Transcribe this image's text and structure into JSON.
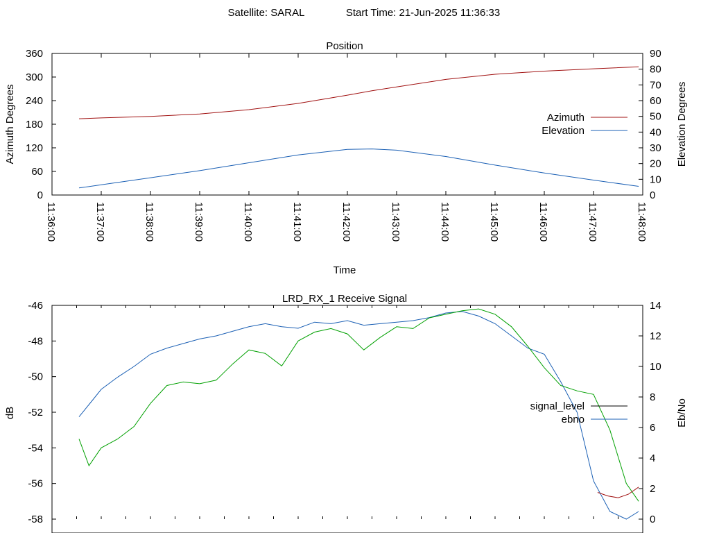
{
  "header": {
    "satellite": "Satellite: SARAL",
    "start_time": "Start Time: 21-Jun-2025 11:36:33"
  },
  "chart_data": [
    {
      "type": "line",
      "title": "Position",
      "xlabel": "Time",
      "ylabel": "Azimuth Degrees",
      "y2label": "Elevation Degrees",
      "xlim": [
        "11:36:00",
        "11:48:00"
      ],
      "ylim": [
        0,
        360
      ],
      "y2lim": [
        0,
        90
      ],
      "x_ticks": [
        "11:36:00",
        "11:37:00",
        "11:38:00",
        "11:39:00",
        "11:40:00",
        "11:41:00",
        "11:42:00",
        "11:43:00",
        "11:44:00",
        "11:45:00",
        "11:46:00",
        "11:47:00",
        "11:48:00"
      ],
      "y_ticks": [
        "0",
        "60",
        "120",
        "180",
        "240",
        "300",
        "360"
      ],
      "y2_ticks": [
        "0",
        "10",
        "20",
        "30",
        "40",
        "50",
        "60",
        "70",
        "80",
        "90"
      ],
      "legend_position": "right",
      "grid": false,
      "x": [
        "11:36:33",
        "11:37:00",
        "11:38:00",
        "11:39:00",
        "11:40:00",
        "11:41:00",
        "11:42:00",
        "11:42:30",
        "11:43:00",
        "11:44:00",
        "11:45:00",
        "11:46:00",
        "11:47:00",
        "11:47:55"
      ],
      "series": [
        {
          "name": "Azimuth",
          "axis": "left",
          "color": "#a01010",
          "values": [
            194,
            196,
            200,
            206,
            217,
            233,
            254,
            265,
            275,
            294,
            307,
            315,
            321,
            326
          ]
        },
        {
          "name": "Elevation",
          "axis": "right",
          "color": "#1a5fb4",
          "values": [
            4.5,
            6.5,
            11,
            15.5,
            20.5,
            25.5,
            29,
            29.3,
            28.5,
            24.5,
            19,
            14,
            9.5,
            5.5
          ]
        }
      ]
    },
    {
      "type": "line",
      "title": "LRD_RX_1 Receive Signal",
      "ylabel": "dB",
      "y2label": "Eb/No",
      "xlim": [
        "11:36:00",
        "11:48:00"
      ],
      "ylim": [
        -58,
        -46
      ],
      "y2lim": [
        0,
        14
      ],
      "y_ticks": [
        "-46",
        "-48",
        "-50",
        "-52",
        "-54",
        "-56",
        "-58"
      ],
      "y2_ticks": [
        "0",
        "2",
        "4",
        "6",
        "8",
        "10",
        "12",
        "14"
      ],
      "legend_position": "right",
      "grid": false,
      "x": [
        "11:36:33",
        "11:36:45",
        "11:37:00",
        "11:37:20",
        "11:37:40",
        "11:38:00",
        "11:38:20",
        "11:38:40",
        "11:39:00",
        "11:39:20",
        "11:39:40",
        "11:40:00",
        "11:40:20",
        "11:40:40",
        "11:41:00",
        "11:41:20",
        "11:41:40",
        "11:42:00",
        "11:42:20",
        "11:42:40",
        "11:43:00",
        "11:43:20",
        "11:43:40",
        "11:44:00",
        "11:44:20",
        "11:44:40",
        "11:45:00",
        "11:45:20",
        "11:45:40",
        "11:46:00",
        "11:46:20",
        "11:46:40",
        "11:47:00",
        "11:47:20",
        "11:47:40",
        "11:47:55"
      ],
      "series": [
        {
          "name": "signal_level",
          "axis": "left",
          "color": "#00a000",
          "values": [
            -53.5,
            -55,
            -54,
            -53.5,
            -52.8,
            -51.5,
            -50.5,
            -50.3,
            -50.4,
            -50.2,
            -49.3,
            -48.5,
            -48.7,
            -49.4,
            -48,
            -47.5,
            -47.3,
            -47.6,
            -48.5,
            -47.8,
            -47.2,
            -47.3,
            -46.7,
            -46.5,
            -46.3,
            -46.2,
            -46.5,
            -47.2,
            -48.3,
            -49.5,
            -50.5,
            -50.8,
            -51,
            -53,
            -56,
            -57
          ],
          "tail_color": "#a01010",
          "tail_values": [
            -56.5,
            -56.7,
            -56.8,
            -56.6,
            -56.2
          ]
        },
        {
          "name": "ebno",
          "axis": "right",
          "color": "#1a5fb4",
          "values": [
            6.7,
            7.5,
            8.5,
            9.3,
            10,
            10.8,
            11.2,
            11.5,
            11.8,
            12,
            12.3,
            12.6,
            12.8,
            12.6,
            12.5,
            12.9,
            12.8,
            13,
            12.7,
            12.8,
            12.9,
            13,
            13.2,
            13.5,
            13.6,
            13.3,
            12.8,
            12,
            11.2,
            10.8,
            9,
            7,
            2.5,
            0.5,
            0,
            0.5
          ]
        }
      ]
    }
  ]
}
